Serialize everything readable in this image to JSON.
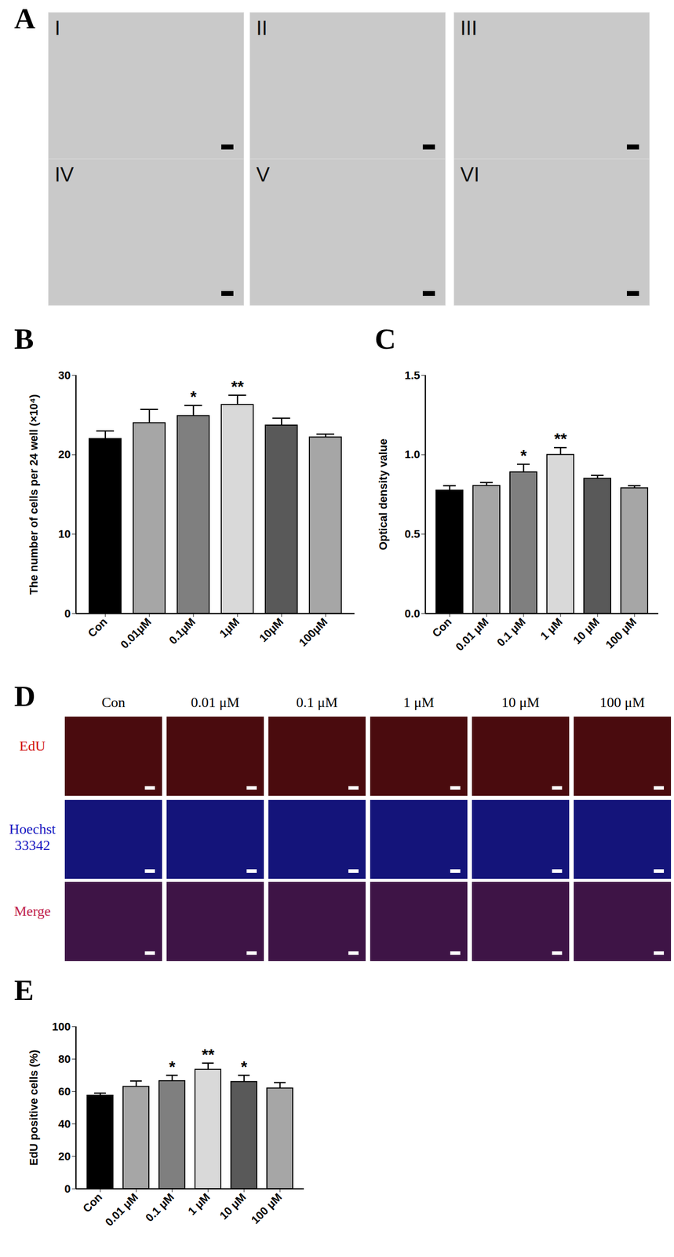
{
  "figure_panels": [
    {
      "title": "A",
      "labels": [
        "I",
        "II",
        "III",
        "IV",
        "V",
        "VI"
      ]
    },
    {
      "title": "D",
      "columns": [
        "Con",
        "0.01 μM",
        "0.1 μM",
        "1 μM",
        "10 μM",
        "100 μM"
      ],
      "rows": [
        "EdU",
        "Hoechst 33342",
        "Merge"
      ]
    }
  ],
  "chart_data": [
    {
      "type": "bar",
      "title": "B",
      "y_label": "The number of cells per 24 well (×10⁴)",
      "categories": [
        "Con",
        "0.01μM",
        "0.1μM",
        "1μM",
        "10μM",
        "100μM"
      ],
      "values": [
        22.0,
        24.0,
        24.9,
        26.3,
        23.7,
        22.2
      ],
      "errors": [
        1.0,
        1.7,
        1.3,
        1.2,
        0.9,
        0.4
      ],
      "significance": [
        null,
        null,
        "*",
        "**",
        null,
        null
      ],
      "colors": [
        "#000000",
        "#a6a6a6",
        "#7f7f7f",
        "#d9d9d9",
        "#595959",
        "#a6a6a6"
      ],
      "ylim": [
        0,
        30
      ],
      "yticks": [
        0,
        10,
        20,
        30
      ]
    },
    {
      "type": "bar",
      "title": "C",
      "y_label": "Optical density value",
      "categories": [
        "Con",
        "0.01 μM",
        "0.1 μM",
        "1 μM",
        "10 μM",
        "100 μM"
      ],
      "values": [
        0.775,
        0.805,
        0.89,
        1.0,
        0.85,
        0.79
      ],
      "errors": [
        0.03,
        0.02,
        0.05,
        0.045,
        0.02,
        0.015
      ],
      "significance": [
        null,
        null,
        "*",
        "**",
        null,
        null
      ],
      "colors": [
        "#000000",
        "#a6a6a6",
        "#7f7f7f",
        "#d9d9d9",
        "#595959",
        "#a6a6a6"
      ],
      "ylim": [
        0,
        1.5
      ],
      "yticks": [
        {
          "value": 0,
          "label": "0.0"
        },
        {
          "value": 0.5,
          "label": "0.5"
        },
        {
          "value": 1,
          "label": "1.0"
        },
        {
          "value": 1.5,
          "label": "1.5"
        }
      ]
    },
    {
      "type": "bar",
      "title": "E",
      "y_label": "EdU positive cells (%)",
      "categories": [
        "Con",
        "0.01 μM",
        "0.1 μM",
        "1 μM",
        "10 μM",
        "100 μM"
      ],
      "values": [
        57.5,
        63.0,
        66.5,
        73.5,
        66.0,
        62.0
      ],
      "errors": [
        1.5,
        3.5,
        3.5,
        4.0,
        4.0,
        3.5
      ],
      "significance": [
        null,
        null,
        "*",
        "**",
        "*",
        null
      ],
      "colors": [
        "#000000",
        "#a6a6a6",
        "#7f7f7f",
        "#d9d9d9",
        "#595959",
        "#a6a6a6"
      ],
      "ylim": [
        0,
        100
      ],
      "yticks": [
        0,
        20,
        40,
        60,
        80,
        100
      ]
    }
  ]
}
